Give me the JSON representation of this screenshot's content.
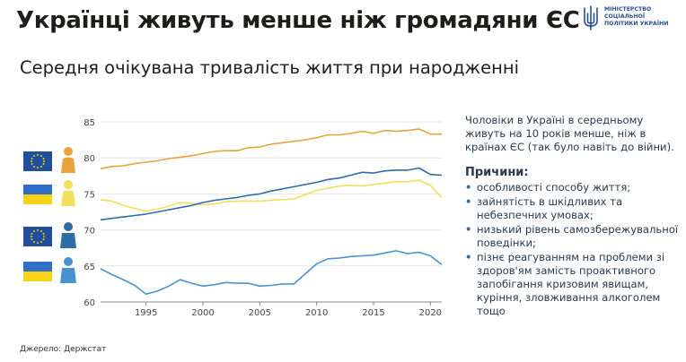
{
  "header": {
    "title": "Українці живуть менше ніж громадяни ЄС",
    "subtitle": "Середня очікувана тривалість життя при народженні",
    "ministry": "Міністерство соціальної політики України"
  },
  "source": "Джерело: Держстат",
  "summary": "Чоловіки в Україні в середньому живуть на 10 років менше, ніж в країнах ЄС (так було навіть до війни).",
  "reasons": {
    "title": "Причини:",
    "items": [
      "особливості способу життя;",
      "зайнятість в шкідливих та небезпечних умовах;",
      "низький рівень самозбережувальної поведінки;",
      "пізнє реагуванням на проблеми зі здоров'ям замість проактивного запобігання кризовим явищам, куріння, зловживання алкоголем тощо"
    ]
  },
  "legend_icons": [
    {
      "flag": "eu-flag-icon",
      "person": "female-icon",
      "color": "#e8a33c"
    },
    {
      "flag": "ukraine-flag-icon",
      "person": "female-icon",
      "color": "#f2df5b"
    },
    {
      "flag": "eu-flag-icon",
      "person": "male-icon",
      "color": "#2e6da4"
    },
    {
      "flag": "ukraine-flag-icon",
      "person": "male-icon",
      "color": "#4a93cf"
    }
  ],
  "chart_data": {
    "type": "line",
    "title": "",
    "xlabel": "",
    "ylabel": "",
    "xlim": [
      1991,
      2021
    ],
    "ylim": [
      60,
      85
    ],
    "x_ticks": [
      1995,
      2000,
      2005,
      2010,
      2015,
      2020
    ],
    "y_ticks": [
      60,
      65,
      70,
      75,
      80,
      85
    ],
    "grid": "horizontal",
    "x": [
      1991,
      1992,
      1993,
      1994,
      1995,
      1996,
      1997,
      1998,
      1999,
      2000,
      2001,
      2002,
      2003,
      2004,
      2005,
      2006,
      2007,
      2008,
      2009,
      2010,
      2011,
      2012,
      2013,
      2014,
      2015,
      2016,
      2017,
      2018,
      2019,
      2020,
      2021
    ],
    "series": [
      {
        "color": "#e8a33c",
        "values": [
          78.5,
          78.8,
          78.9,
          79.2,
          79.4,
          79.6,
          79.9,
          80.1,
          80.3,
          80.6,
          80.9,
          81.0,
          81.0,
          81.4,
          81.5,
          81.9,
          82.1,
          82.3,
          82.5,
          82.8,
          83.2,
          83.2,
          83.4,
          83.7,
          83.4,
          83.8,
          83.7,
          83.8,
          84.0,
          83.3,
          83.3
        ]
      },
      {
        "color": "#f2df5b",
        "values": [
          74.2,
          74.0,
          73.4,
          73.0,
          72.6,
          72.9,
          73.3,
          73.8,
          73.7,
          73.5,
          73.6,
          73.9,
          74.0,
          74.0,
          74.0,
          74.1,
          74.2,
          74.3,
          74.9,
          75.5,
          75.8,
          76.1,
          76.2,
          76.1,
          76.3,
          76.5,
          76.7,
          76.7,
          76.9,
          76.2,
          74.5
        ]
      },
      {
        "color": "#2e6da4",
        "values": [
          71.4,
          71.6,
          71.8,
          72.0,
          72.2,
          72.5,
          72.8,
          73.1,
          73.4,
          73.8,
          74.1,
          74.3,
          74.5,
          74.8,
          75.0,
          75.4,
          75.7,
          76.0,
          76.3,
          76.6,
          77.0,
          77.2,
          77.6,
          78.0,
          77.9,
          78.2,
          78.3,
          78.3,
          78.6,
          77.7,
          77.6
        ]
      },
      {
        "color": "#4a93cf",
        "values": [
          64.6,
          63.8,
          63.1,
          62.3,
          61.1,
          61.5,
          62.2,
          63.1,
          62.6,
          62.2,
          62.4,
          62.7,
          62.6,
          62.6,
          62.2,
          62.3,
          62.5,
          62.5,
          63.9,
          65.3,
          66.0,
          66.1,
          66.3,
          66.4,
          66.5,
          66.8,
          67.1,
          66.7,
          66.9,
          66.4,
          65.2
        ]
      }
    ]
  }
}
